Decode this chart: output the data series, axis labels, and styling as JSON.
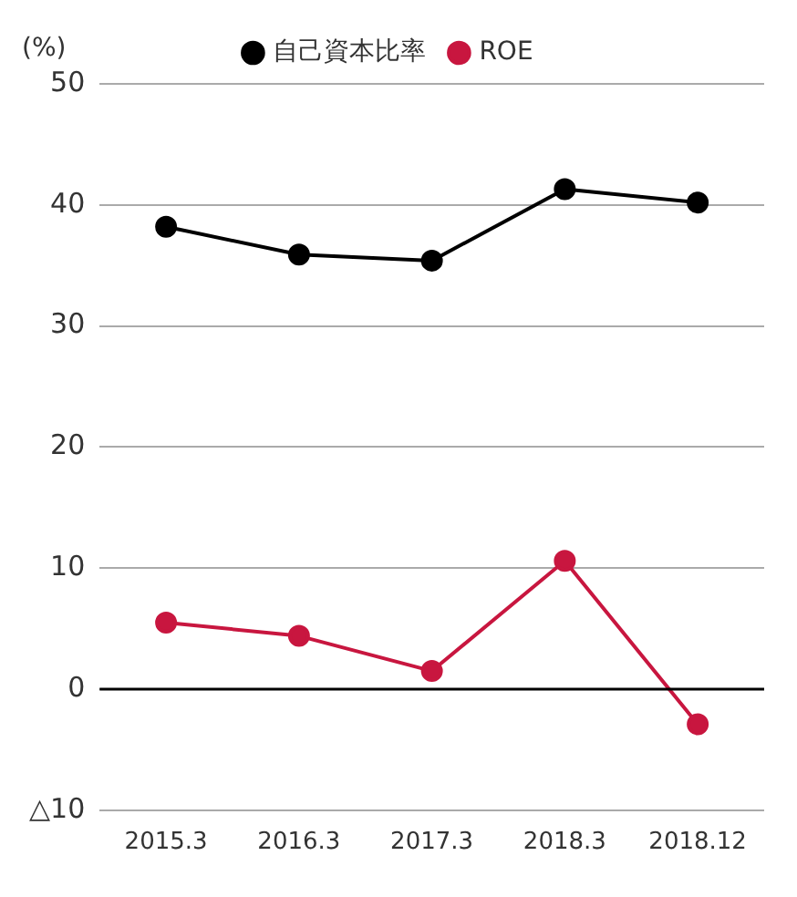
{
  "chart_data": {
    "type": "line",
    "ylabel": "(%)",
    "categories": [
      "2015.3",
      "2016.3",
      "2017.3",
      "2018.3",
      "2018.12"
    ],
    "series": [
      {
        "name": "自己資本比率",
        "color": "#000000",
        "values": [
          38.2,
          35.9,
          35.4,
          41.3,
          40.2
        ]
      },
      {
        "name": "ROE",
        "color": "#c8163f",
        "values": [
          5.5,
          4.4,
          1.5,
          10.6,
          -2.9
        ]
      }
    ],
    "ylim": [
      -10,
      50
    ],
    "yticks": [
      {
        "value": -10,
        "label": "△10"
      },
      0,
      10,
      20,
      30,
      40,
      50
    ],
    "grid": "y",
    "legend": "top",
    "marker": "circle",
    "line_style": "solid",
    "ref_lines": [
      {
        "axis": "y",
        "value": 0,
        "color": "#000000"
      }
    ]
  }
}
